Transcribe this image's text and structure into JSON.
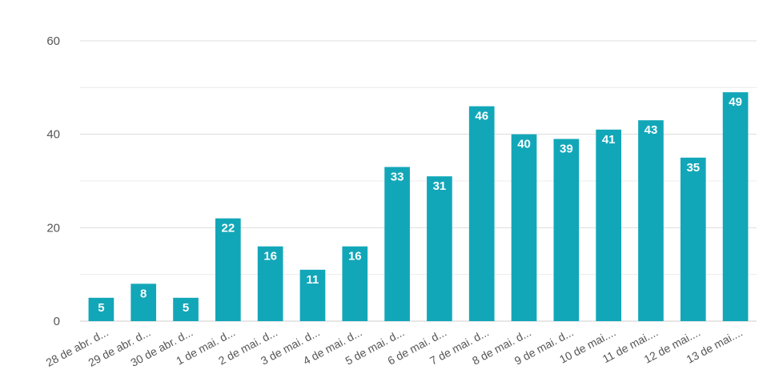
{
  "chart_data": {
    "type": "bar",
    "title": "",
    "xlabel": "",
    "ylabel": "",
    "categories": [
      "28 de abr. d...",
      "29 de abr. d...",
      "30 de abr. d...",
      "1 de mai. d...",
      "2 de mai. d...",
      "3 de mai. d...",
      "4 de mai. d...",
      "5 de mai. d...",
      "6 de mai. d...",
      "7 de mai. d...",
      "8 de mai. d...",
      "9 de mai. d...",
      "10 de mai....",
      "11 de mai....",
      "12 de mai....",
      "13 de mai...."
    ],
    "values": [
      5,
      8,
      5,
      22,
      16,
      11,
      16,
      33,
      31,
      46,
      40,
      39,
      41,
      43,
      35,
      49
    ],
    "ylim": [
      0,
      60
    ],
    "yticks": [
      0,
      20,
      40,
      60
    ],
    "grid": true,
    "legend": "none",
    "colors": {
      "bar": "#12a7b8",
      "grid": "#dcdcdc",
      "axis": "#cccccc"
    }
  }
}
